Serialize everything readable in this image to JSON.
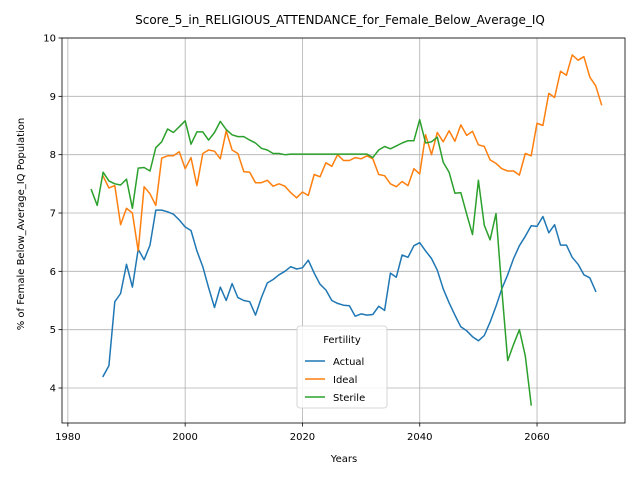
{
  "chart_data": {
    "type": "line",
    "title": "Score_5_in_RELIGIOUS_ATTENDANCE_for_Female_Below_Average_IQ",
    "xlabel": "Years",
    "ylabel": "% of Female Below_Average_IQ Population",
    "xlim": [
      1979,
      2075
    ],
    "ylim": [
      3.4,
      10
    ],
    "xticks": [
      1980,
      2000,
      2020,
      2040,
      2060
    ],
    "yticks": [
      4,
      5,
      6,
      7,
      8,
      9,
      10
    ],
    "grid": true,
    "legend": {
      "title": "Fertility",
      "placement": "lower center"
    },
    "series": [
      {
        "name": "Actual",
        "color": "#1f77b4",
        "points": [
          [
            1986,
            4.2
          ],
          [
            1987,
            4.38
          ],
          [
            1988,
            5.48
          ],
          [
            1989,
            5.62
          ],
          [
            1990,
            6.12
          ],
          [
            1991,
            5.73
          ],
          [
            1992,
            6.38
          ],
          [
            1993,
            6.2
          ],
          [
            1994,
            6.45
          ],
          [
            1995,
            7.05
          ],
          [
            1996,
            7.05
          ],
          [
            1997,
            7.02
          ],
          [
            1998,
            6.98
          ],
          [
            1999,
            6.88
          ],
          [
            2000,
            6.76
          ],
          [
            2001,
            6.7
          ],
          [
            2002,
            6.35
          ],
          [
            2003,
            6.08
          ],
          [
            2004,
            5.72
          ],
          [
            2005,
            5.38
          ],
          [
            2006,
            5.73
          ],
          [
            2007,
            5.5
          ],
          [
            2008,
            5.79
          ],
          [
            2009,
            5.55
          ],
          [
            2010,
            5.5
          ],
          [
            2011,
            5.48
          ],
          [
            2012,
            5.25
          ],
          [
            2013,
            5.55
          ],
          [
            2014,
            5.8
          ],
          [
            2015,
            5.86
          ],
          [
            2016,
            5.94
          ],
          [
            2017,
            6.0
          ],
          [
            2018,
            6.08
          ],
          [
            2019,
            6.04
          ],
          [
            2020,
            6.06
          ],
          [
            2021,
            6.19
          ],
          [
            2022,
            5.97
          ],
          [
            2023,
            5.78
          ],
          [
            2024,
            5.68
          ],
          [
            2025,
            5.5
          ],
          [
            2026,
            5.45
          ],
          [
            2027,
            5.42
          ],
          [
            2028,
            5.41
          ],
          [
            2029,
            5.23
          ],
          [
            2030,
            5.27
          ],
          [
            2031,
            5.25
          ],
          [
            2032,
            5.26
          ],
          [
            2033,
            5.4
          ],
          [
            2034,
            5.33
          ],
          [
            2035,
            5.97
          ],
          [
            2036,
            5.9
          ],
          [
            2037,
            6.28
          ],
          [
            2038,
            6.24
          ],
          [
            2039,
            6.44
          ],
          [
            2040,
            6.49
          ],
          [
            2041,
            6.35
          ],
          [
            2042,
            6.22
          ],
          [
            2043,
            6.02
          ],
          [
            2044,
            5.7
          ],
          [
            2045,
            5.46
          ],
          [
            2046,
            5.25
          ],
          [
            2047,
            5.05
          ],
          [
            2048,
            4.98
          ],
          [
            2049,
            4.88
          ],
          [
            2050,
            4.81
          ],
          [
            2051,
            4.9
          ],
          [
            2052,
            5.13
          ],
          [
            2053,
            5.4
          ],
          [
            2054,
            5.7
          ],
          [
            2055,
            5.94
          ],
          [
            2056,
            6.22
          ],
          [
            2057,
            6.44
          ],
          [
            2058,
            6.6
          ],
          [
            2059,
            6.78
          ],
          [
            2060,
            6.77
          ],
          [
            2061,
            6.94
          ],
          [
            2062,
            6.66
          ],
          [
            2063,
            6.8
          ],
          [
            2064,
            6.45
          ],
          [
            2065,
            6.45
          ],
          [
            2066,
            6.24
          ],
          [
            2067,
            6.12
          ],
          [
            2068,
            5.94
          ],
          [
            2069,
            5.89
          ],
          [
            2070,
            5.66
          ]
        ]
      },
      {
        "name": "Ideal",
        "color": "#ff7f0e",
        "points": [
          [
            1986,
            7.63
          ],
          [
            1987,
            7.43
          ],
          [
            1988,
            7.47
          ],
          [
            1989,
            6.8
          ],
          [
            1990,
            7.08
          ],
          [
            1991,
            7.0
          ],
          [
            1992,
            6.35
          ],
          [
            1993,
            7.45
          ],
          [
            1994,
            7.33
          ],
          [
            1995,
            7.13
          ],
          [
            1996,
            7.94
          ],
          [
            1997,
            7.98
          ],
          [
            1998,
            7.98
          ],
          [
            1999,
            8.05
          ],
          [
            2000,
            7.76
          ],
          [
            2001,
            7.95
          ],
          [
            2002,
            7.47
          ],
          [
            2003,
            8.02
          ],
          [
            2004,
            8.08
          ],
          [
            2005,
            8.06
          ],
          [
            2006,
            7.93
          ],
          [
            2007,
            8.41
          ],
          [
            2008,
            8.08
          ],
          [
            2009,
            8.02
          ],
          [
            2010,
            7.71
          ],
          [
            2011,
            7.7
          ],
          [
            2012,
            7.52
          ],
          [
            2013,
            7.52
          ],
          [
            2014,
            7.56
          ],
          [
            2015,
            7.46
          ],
          [
            2016,
            7.5
          ],
          [
            2017,
            7.46
          ],
          [
            2018,
            7.35
          ],
          [
            2019,
            7.26
          ],
          [
            2020,
            7.36
          ],
          [
            2021,
            7.3
          ],
          [
            2022,
            7.66
          ],
          [
            2023,
            7.62
          ],
          [
            2024,
            7.86
          ],
          [
            2025,
            7.8
          ],
          [
            2026,
            8.0
          ],
          [
            2027,
            7.9
          ],
          [
            2028,
            7.9
          ],
          [
            2029,
            7.95
          ],
          [
            2030,
            7.93
          ],
          [
            2031,
            7.98
          ],
          [
            2032,
            7.93
          ],
          [
            2033,
            7.66
          ],
          [
            2034,
            7.64
          ],
          [
            2035,
            7.5
          ],
          [
            2036,
            7.45
          ],
          [
            2037,
            7.54
          ],
          [
            2038,
            7.47
          ],
          [
            2039,
            7.76
          ],
          [
            2040,
            7.67
          ],
          [
            2041,
            8.34
          ],
          [
            2042,
            8.0
          ],
          [
            2043,
            8.38
          ],
          [
            2044,
            8.22
          ],
          [
            2045,
            8.41
          ],
          [
            2046,
            8.23
          ],
          [
            2047,
            8.51
          ],
          [
            2048,
            8.33
          ],
          [
            2049,
            8.4
          ],
          [
            2050,
            8.17
          ],
          [
            2051,
            8.14
          ],
          [
            2052,
            7.91
          ],
          [
            2053,
            7.85
          ],
          [
            2054,
            7.76
          ],
          [
            2055,
            7.72
          ],
          [
            2056,
            7.72
          ],
          [
            2057,
            7.65
          ],
          [
            2058,
            8.02
          ],
          [
            2059,
            7.98
          ],
          [
            2060,
            8.54
          ],
          [
            2061,
            8.5
          ],
          [
            2062,
            9.05
          ],
          [
            2063,
            8.98
          ],
          [
            2064,
            9.43
          ],
          [
            2065,
            9.36
          ],
          [
            2066,
            9.71
          ],
          [
            2067,
            9.62
          ],
          [
            2068,
            9.68
          ],
          [
            2069,
            9.33
          ],
          [
            2070,
            9.18
          ],
          [
            2071,
            8.86
          ]
        ]
      },
      {
        "name": "Sterile",
        "color": "#2ca02c",
        "points": [
          [
            1984,
            7.4
          ],
          [
            1985,
            7.13
          ],
          [
            1986,
            7.7
          ],
          [
            1987,
            7.55
          ],
          [
            1988,
            7.5
          ],
          [
            1989,
            7.48
          ],
          [
            1990,
            7.58
          ],
          [
            1991,
            7.08
          ],
          [
            1992,
            7.77
          ],
          [
            1993,
            7.78
          ],
          [
            1994,
            7.72
          ],
          [
            1995,
            8.12
          ],
          [
            1996,
            8.22
          ],
          [
            1997,
            8.44
          ],
          [
            1998,
            8.38
          ],
          [
            1999,
            8.48
          ],
          [
            2000,
            8.58
          ],
          [
            2001,
            8.18
          ],
          [
            2002,
            8.39
          ],
          [
            2003,
            8.39
          ],
          [
            2004,
            8.25
          ],
          [
            2005,
            8.38
          ],
          [
            2006,
            8.57
          ],
          [
            2007,
            8.43
          ],
          [
            2008,
            8.34
          ],
          [
            2009,
            8.31
          ],
          [
            2010,
            8.31
          ],
          [
            2011,
            8.25
          ],
          [
            2012,
            8.2
          ],
          [
            2013,
            8.11
          ],
          [
            2014,
            8.08
          ],
          [
            2015,
            8.02
          ],
          [
            2016,
            8.02
          ],
          [
            2017,
            8.0
          ],
          [
            2018,
            8.01
          ],
          [
            2019,
            8.01
          ],
          [
            2020,
            8.01
          ],
          [
            2021,
            8.01
          ],
          [
            2022,
            8.01
          ],
          [
            2023,
            8.01
          ],
          [
            2024,
            8.01
          ],
          [
            2025,
            8.01
          ],
          [
            2026,
            8.01
          ],
          [
            2027,
            8.01
          ],
          [
            2028,
            8.01
          ],
          [
            2029,
            8.01
          ],
          [
            2030,
            8.01
          ],
          [
            2031,
            8.01
          ],
          [
            2032,
            7.95
          ],
          [
            2033,
            8.08
          ],
          [
            2034,
            8.14
          ],
          [
            2035,
            8.1
          ],
          [
            2036,
            8.15
          ],
          [
            2037,
            8.2
          ],
          [
            2038,
            8.24
          ],
          [
            2039,
            8.24
          ],
          [
            2040,
            8.6
          ],
          [
            2041,
            8.2
          ],
          [
            2042,
            8.22
          ],
          [
            2043,
            8.3
          ],
          [
            2044,
            7.87
          ],
          [
            2045,
            7.7
          ],
          [
            2046,
            7.34
          ],
          [
            2047,
            7.35
          ],
          [
            2048,
            6.98
          ],
          [
            2049,
            6.63
          ],
          [
            2050,
            7.56
          ],
          [
            2051,
            6.79
          ],
          [
            2052,
            6.54
          ],
          [
            2053,
            6.99
          ],
          [
            2054,
            5.69
          ],
          [
            2055,
            4.47
          ],
          [
            2056,
            4.75
          ],
          [
            2057,
            5.0
          ],
          [
            2058,
            4.55
          ],
          [
            2059,
            3.71
          ]
        ]
      }
    ]
  }
}
